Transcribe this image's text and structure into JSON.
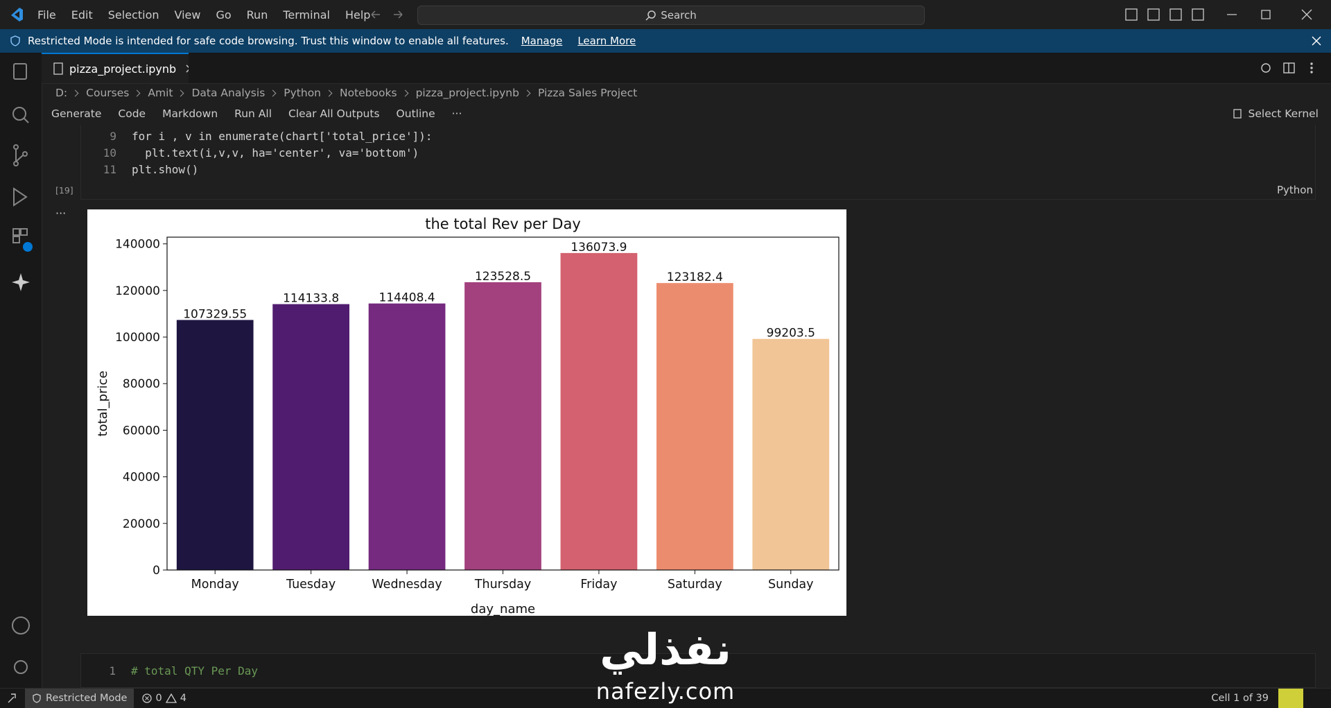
{
  "menu": [
    "File",
    "Edit",
    "Selection",
    "View",
    "Go",
    "Run",
    "Terminal",
    "Help"
  ],
  "search": "Search",
  "banner": {
    "message": "Restricted Mode is intended for safe code browsing. Trust this window to enable all features.",
    "links": [
      "Manage",
      "Learn More"
    ]
  },
  "tab": "pizza_project.ipynb",
  "breadcrumbs": [
    "D:",
    "Courses",
    "Amit",
    "Data Analysis",
    "Python",
    "Notebooks",
    "pizza_project.ipynb",
    "Pizza Sales Project"
  ],
  "toolbar": [
    "Generate",
    "Code",
    "Markdown",
    "Run All",
    "Clear All Outputs",
    "Outline"
  ],
  "more_actions": "···",
  "kernel": "Select Kernel",
  "cell": {
    "lines": [
      {
        "number": 9,
        "code": "for i , v in enumerate(chart['total_price']):"
      },
      {
        "number": 10,
        "code": "  plt.text(i,v,v, ha='center', va='bottom')"
      },
      {
        "number": 11,
        "code": "plt.show()"
      }
    ],
    "exec_count": "[19]",
    "language": "Python",
    "output_menu": "···"
  },
  "chart_data": {
    "type": "bar",
    "title": "the total Rev per Day",
    "xlabel": "day_name",
    "ylabel": "total_price",
    "categories": [
      "Monday",
      "Tuesday",
      "Wednesday",
      "Thursday",
      "Friday",
      "Saturday",
      "Sunday"
    ],
    "values": [
      107329.55,
      114133.8,
      114408.4,
      123528.5,
      136073.9,
      123182.4,
      99203.5
    ],
    "colors": [
      "#1e1541",
      "#501c6f",
      "#752a80",
      "#a3417e",
      "#d4616f",
      "#ec8c6e",
      "#f1c596"
    ],
    "ylim": [
      0,
      142877.6
    ],
    "yticks": [
      0,
      20000,
      40000,
      60000,
      80000,
      100000,
      120000,
      140000
    ],
    "grid": false
  },
  "next_cell": {
    "number": 1,
    "code": "# total QTY Per Day"
  },
  "status": {
    "mode": "Restricted Mode",
    "errors": 0,
    "warnings": 4,
    "cell": "Cell 1 of 39"
  },
  "watermark": {
    "arabic": "نفذلي",
    "latin": "nafezly.com"
  }
}
